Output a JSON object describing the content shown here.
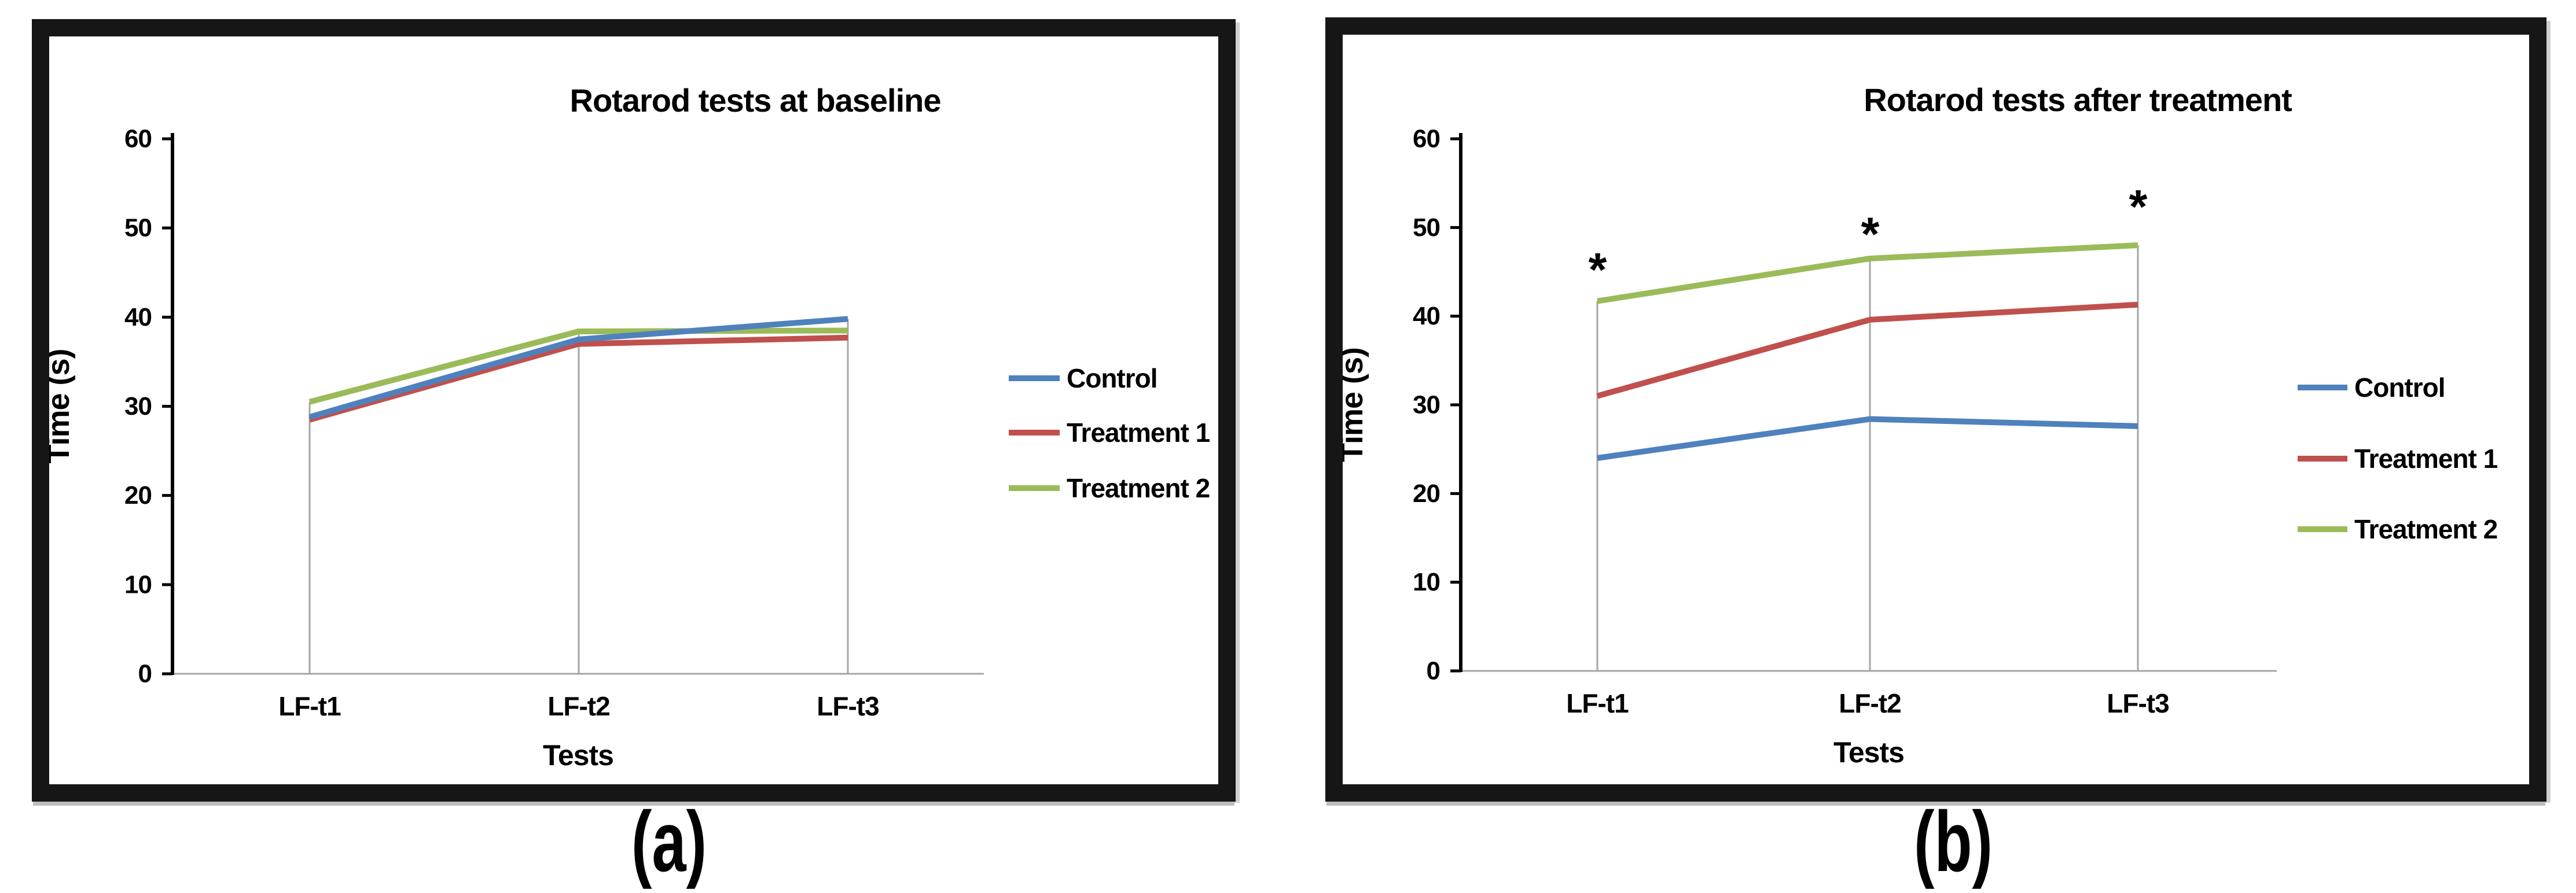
{
  "figure": {
    "background": "#ffffff",
    "frame_color": "#161616",
    "captions": {
      "a": "(a)",
      "b": "(b)"
    }
  },
  "colors": {
    "control": "#4f81bd",
    "treatment1": "#c0504d",
    "treatment2": "#9bbb59",
    "gridline": "#a6a6a6",
    "axis": "#000000",
    "text": "#000000"
  },
  "chart_data": [
    {
      "type": "line",
      "panel": "a",
      "title": "Rotarod tests at baseline",
      "xlabel": "Tests",
      "ylabel": "Time (s)",
      "categories": [
        "LF-t1",
        "LF-t2",
        "LF-t3"
      ],
      "ylim": [
        0,
        60
      ],
      "y_ticks": [
        "0",
        "10",
        "20",
        "30",
        "40",
        "50",
        "60"
      ],
      "grid": "vertical drop lines at each category, light gray",
      "legend_position": "right",
      "legend": [
        "Control",
        "Treatment 1",
        "Treatment 2"
      ],
      "series": [
        {
          "name": "Control",
          "color": "#4f81bd",
          "values": [
            28.8,
            37.5,
            39.8
          ]
        },
        {
          "name": "Treatment 1",
          "color": "#c0504d",
          "values": [
            28.5,
            37.0,
            37.7
          ]
        },
        {
          "name": "Treatment 2",
          "color": "#9bbb59",
          "values": [
            30.5,
            38.4,
            38.5
          ]
        }
      ],
      "annotations": []
    },
    {
      "type": "line",
      "panel": "b",
      "title": "Rotarod  tests after treatment",
      "xlabel": "Tests",
      "ylabel": "Time (s)",
      "categories": [
        "LF-t1",
        "LF-t2",
        "LF-t3"
      ],
      "ylim": [
        0,
        60
      ],
      "y_ticks": [
        "0",
        "10",
        "20",
        "30",
        "40",
        "50",
        "60"
      ],
      "grid": "vertical drop lines at each category, light gray",
      "legend_position": "right",
      "legend": [
        "Control",
        "Treatment 1",
        "Treatment 2"
      ],
      "series": [
        {
          "name": "Control",
          "color": "#4f81bd",
          "values": [
            24.0,
            28.4,
            27.6
          ]
        },
        {
          "name": "Treatment 1",
          "color": "#c0504d",
          "values": [
            31.0,
            39.6,
            41.3
          ]
        },
        {
          "name": "Treatment 2",
          "color": "#9bbb59",
          "values": [
            41.7,
            46.5,
            48.0
          ]
        }
      ],
      "annotations": [
        {
          "category_index": 0,
          "text": "*",
          "value": 45.2
        },
        {
          "category_index": 1,
          "text": "*",
          "value": 49.2
        },
        {
          "category_index": 2,
          "text": "*",
          "value": 52.3
        }
      ]
    }
  ]
}
